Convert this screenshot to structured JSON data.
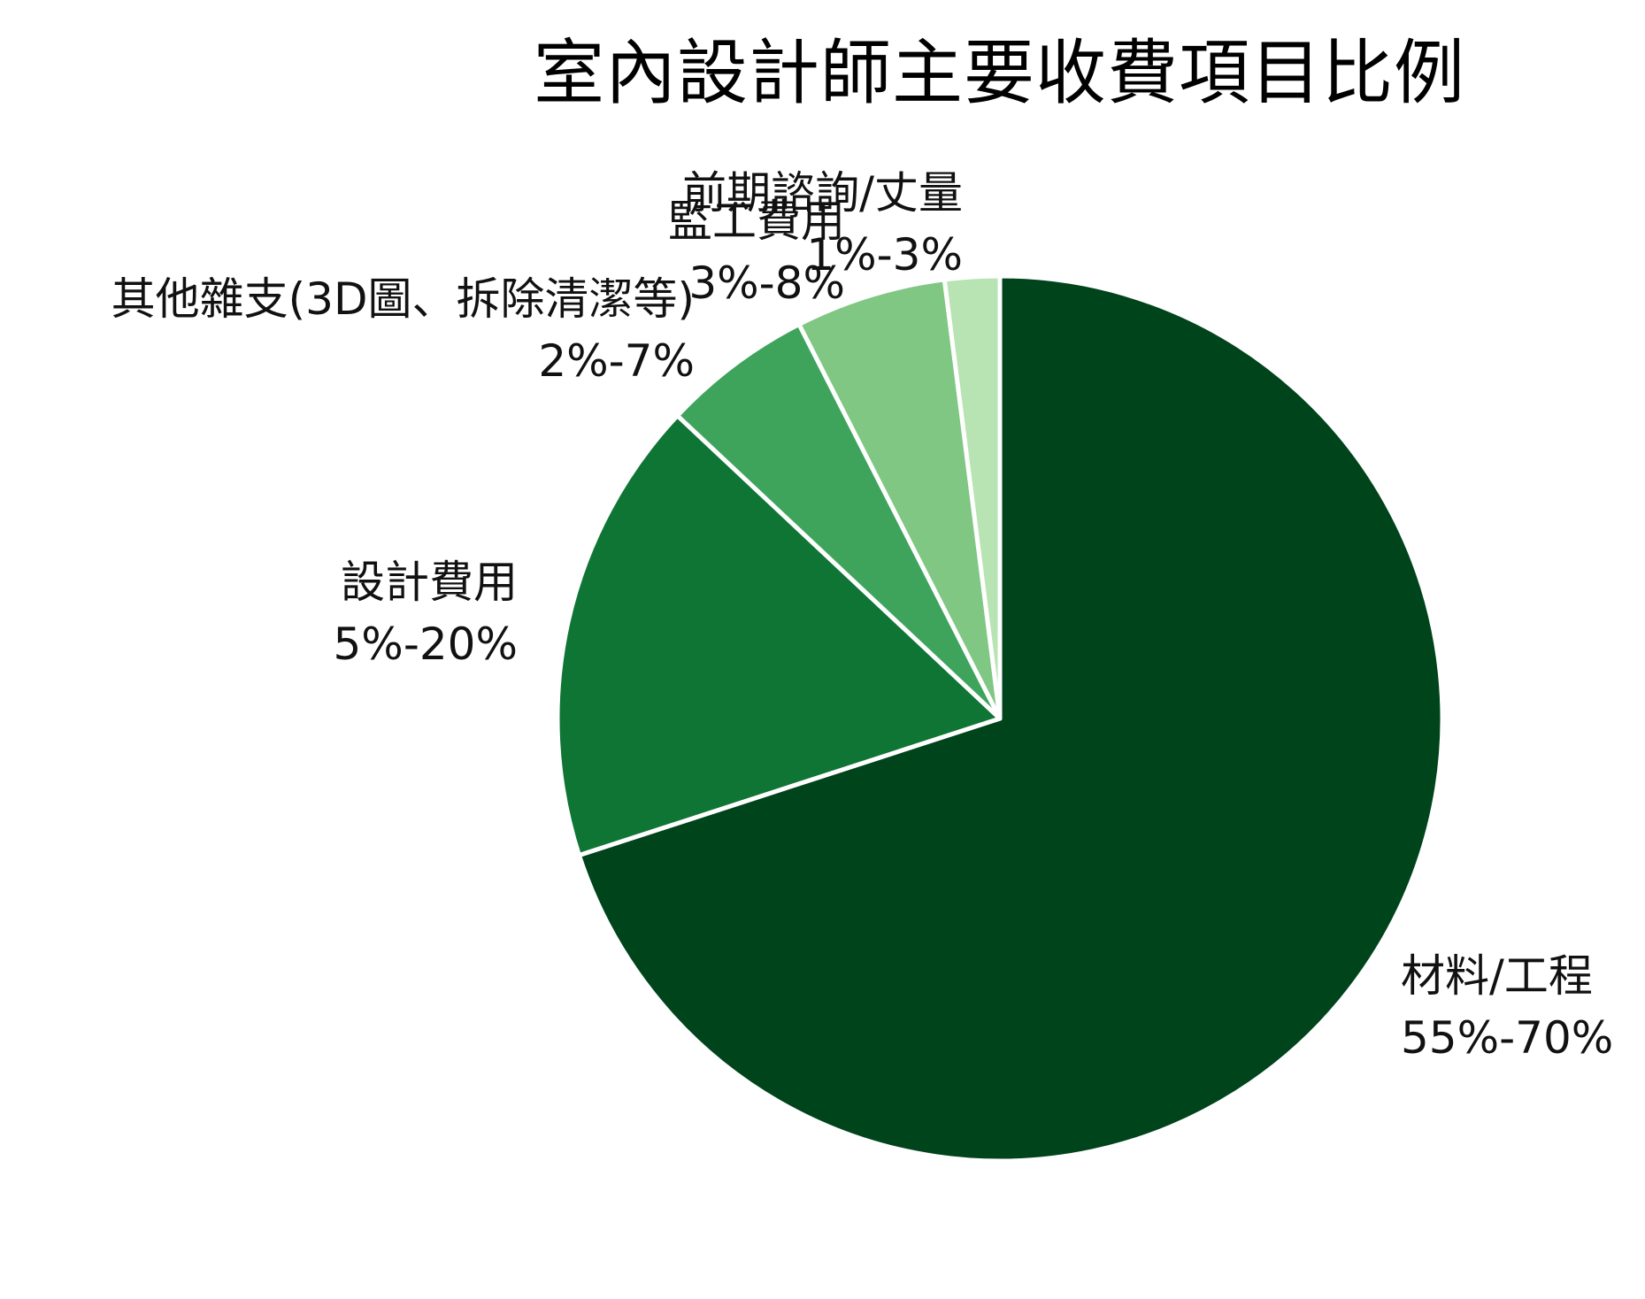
{
  "chart_data": {
    "type": "pie",
    "title": "室內設計師主要收費項目比例",
    "slices": [
      {
        "name": "材料/工程",
        "range": "55%-70%",
        "value": 70,
        "color": "#00441b"
      },
      {
        "name": "設計費用",
        "range": "5%-20%",
        "value": 17,
        "color": "#0f7534"
      },
      {
        "name": "其他雜支(3D圖、拆除清潔等)",
        "range": "2%-7%",
        "value": 5.5,
        "color": "#3ea45c"
      },
      {
        "name": "監工費用",
        "range": "3%-8%",
        "value": 5.5,
        "color": "#80c783"
      },
      {
        "name": "前期諮詢/丈量",
        "range": "1%-3%",
        "value": 2,
        "color": "#b8e3b2"
      }
    ],
    "legend": "none"
  }
}
